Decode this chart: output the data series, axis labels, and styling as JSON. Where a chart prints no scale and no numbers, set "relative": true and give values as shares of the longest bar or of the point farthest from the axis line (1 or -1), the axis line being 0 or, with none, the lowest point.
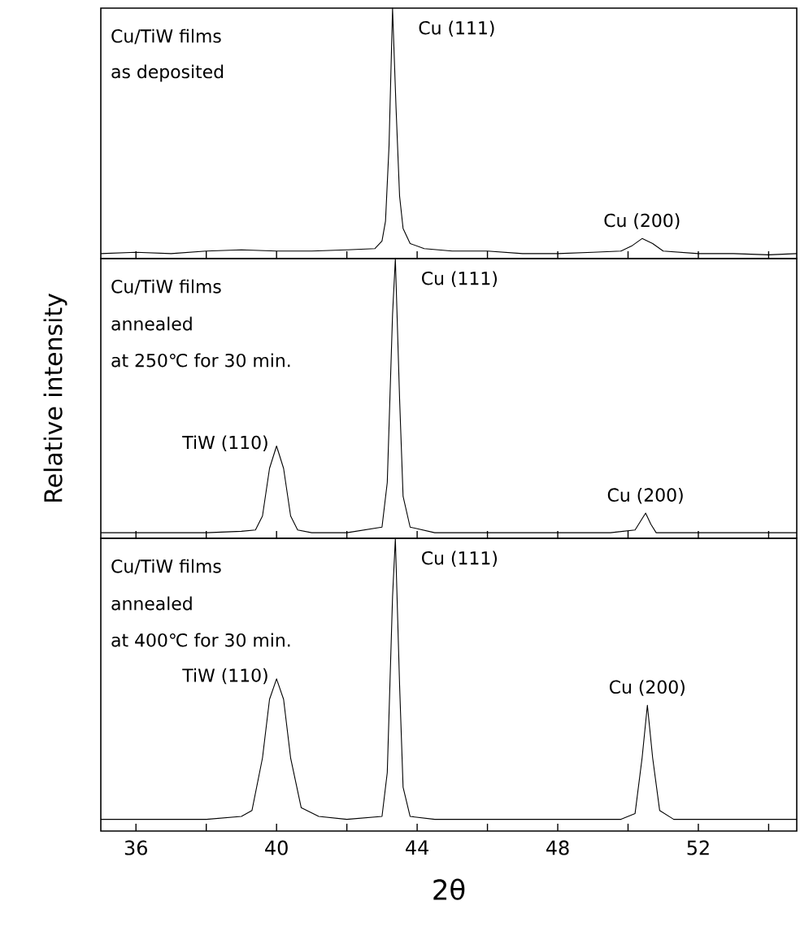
{
  "chart_data": [
    {
      "type": "line",
      "relative": true,
      "tick_labels": false,
      "xlim": [
        35,
        54.8
      ],
      "xticks": [
        36,
        {
          "value": 38,
          "label": null
        },
        40,
        {
          "value": 42,
          "label": null
        },
        44,
        {
          "value": 46,
          "label": null
        },
        48,
        {
          "value": 50,
          "label": null
        },
        52,
        {
          "value": 54,
          "label": null
        }
      ],
      "series": [
        {
          "color": "#000000",
          "x": [
            35.0,
            36,
            37,
            38,
            39,
            40,
            41,
            42,
            42.8,
            43.0,
            43.1,
            43.2,
            43.3,
            43.4,
            43.5,
            43.6,
            43.8,
            44.2,
            45,
            46,
            47,
            48,
            49,
            49.8,
            50.1,
            50.4,
            50.7,
            51.0,
            52,
            53,
            54,
            54.8
          ],
          "values": [
            0.02,
            0.025,
            0.02,
            0.03,
            0.035,
            0.03,
            0.03,
            0.035,
            0.04,
            0.07,
            0.15,
            0.45,
            1.0,
            0.6,
            0.25,
            0.12,
            0.06,
            0.04,
            0.03,
            0.03,
            0.02,
            0.02,
            0.025,
            0.03,
            0.05,
            0.08,
            0.06,
            0.03,
            0.02,
            0.02,
            0.015,
            0.02
          ]
        }
      ],
      "annotations": [
        "Cu/TiW films",
        "as deposited",
        {
          "text": "Cu (111)",
          "x": 43.3,
          "y": 1.0
        },
        {
          "text": "Cu (200)",
          "x": 50.4,
          "y": 0.08
        }
      ]
    },
    {
      "type": "line",
      "relative": true,
      "tick_labels": false,
      "ylabel": "Relative intensity",
      "xlim": [
        35,
        54.8
      ],
      "xticks": [
        36,
        {
          "value": 38,
          "label": null
        },
        40,
        {
          "value": 42,
          "label": null
        },
        44,
        {
          "value": 46,
          "label": null
        },
        48,
        {
          "value": 50,
          "label": null
        },
        52,
        {
          "value": 54,
          "label": null
        }
      ],
      "series": [
        {
          "color": "#000000",
          "x": [
            35.0,
            36,
            37,
            38,
            39,
            39.4,
            39.6,
            39.8,
            40.0,
            40.2,
            40.4,
            40.6,
            41,
            42,
            43.0,
            43.15,
            43.3,
            43.38,
            43.5,
            43.6,
            43.8,
            44.5,
            46,
            48,
            49.5,
            50.2,
            50.35,
            50.5,
            50.65,
            50.8,
            52,
            53,
            54.8
          ],
          "values": [
            0.02,
            0.02,
            0.02,
            0.02,
            0.025,
            0.03,
            0.08,
            0.25,
            0.33,
            0.25,
            0.08,
            0.03,
            0.02,
            0.02,
            0.04,
            0.2,
            0.8,
            1.0,
            0.5,
            0.15,
            0.04,
            0.02,
            0.02,
            0.02,
            0.02,
            0.03,
            0.06,
            0.09,
            0.05,
            0.02,
            0.02,
            0.02,
            0.02
          ]
        }
      ],
      "annotations": [
        "Cu/TiW films",
        "annealed",
        "at 250℃ for 30 min.",
        {
          "text": "Cu (111)",
          "x": 43.38,
          "y": 1.0
        },
        {
          "text": "TiW (110)",
          "x": 40.0,
          "y": 0.33
        },
        {
          "text": "Cu (200)",
          "x": 50.5,
          "y": 0.09
        }
      ]
    },
    {
      "type": "line",
      "relative": true,
      "tick_labels": "x",
      "xlabel": "2θ",
      "xlim": [
        35,
        54.8
      ],
      "xticks": [
        36,
        {
          "value": 38,
          "label": null
        },
        40,
        {
          "value": 42,
          "label": null
        },
        44,
        {
          "value": 46,
          "label": null
        },
        48,
        {
          "value": 50,
          "label": null
        },
        52,
        {
          "value": 54,
          "label": null
        }
      ],
      "series": [
        {
          "color": "#000000",
          "x": [
            35.0,
            36,
            37,
            38,
            39,
            39.3,
            39.6,
            39.8,
            40.0,
            40.2,
            40.4,
            40.7,
            41.2,
            42,
            43.0,
            43.15,
            43.3,
            43.38,
            43.5,
            43.6,
            43.8,
            44.5,
            46,
            48,
            49.8,
            50.2,
            50.4,
            50.55,
            50.7,
            50.9,
            51.3,
            52,
            53,
            54.8
          ],
          "values": [
            0.04,
            0.04,
            0.04,
            0.04,
            0.05,
            0.07,
            0.25,
            0.45,
            0.52,
            0.45,
            0.25,
            0.08,
            0.05,
            0.04,
            0.05,
            0.2,
            0.8,
            1.0,
            0.5,
            0.15,
            0.05,
            0.04,
            0.04,
            0.04,
            0.04,
            0.06,
            0.25,
            0.43,
            0.25,
            0.07,
            0.04,
            0.04,
            0.04,
            0.04
          ]
        }
      ],
      "annotations": [
        "Cu/TiW films",
        "annealed",
        "at 400℃ for 30 min.",
        {
          "text": "Cu (111)",
          "x": 43.38,
          "y": 1.0
        },
        {
          "text": "Cu (200)",
          "x": 50.55,
          "y": 0.43
        },
        {
          "text": "TiW (110)",
          "x": 40.0,
          "y": 0.52
        }
      ]
    }
  ]
}
